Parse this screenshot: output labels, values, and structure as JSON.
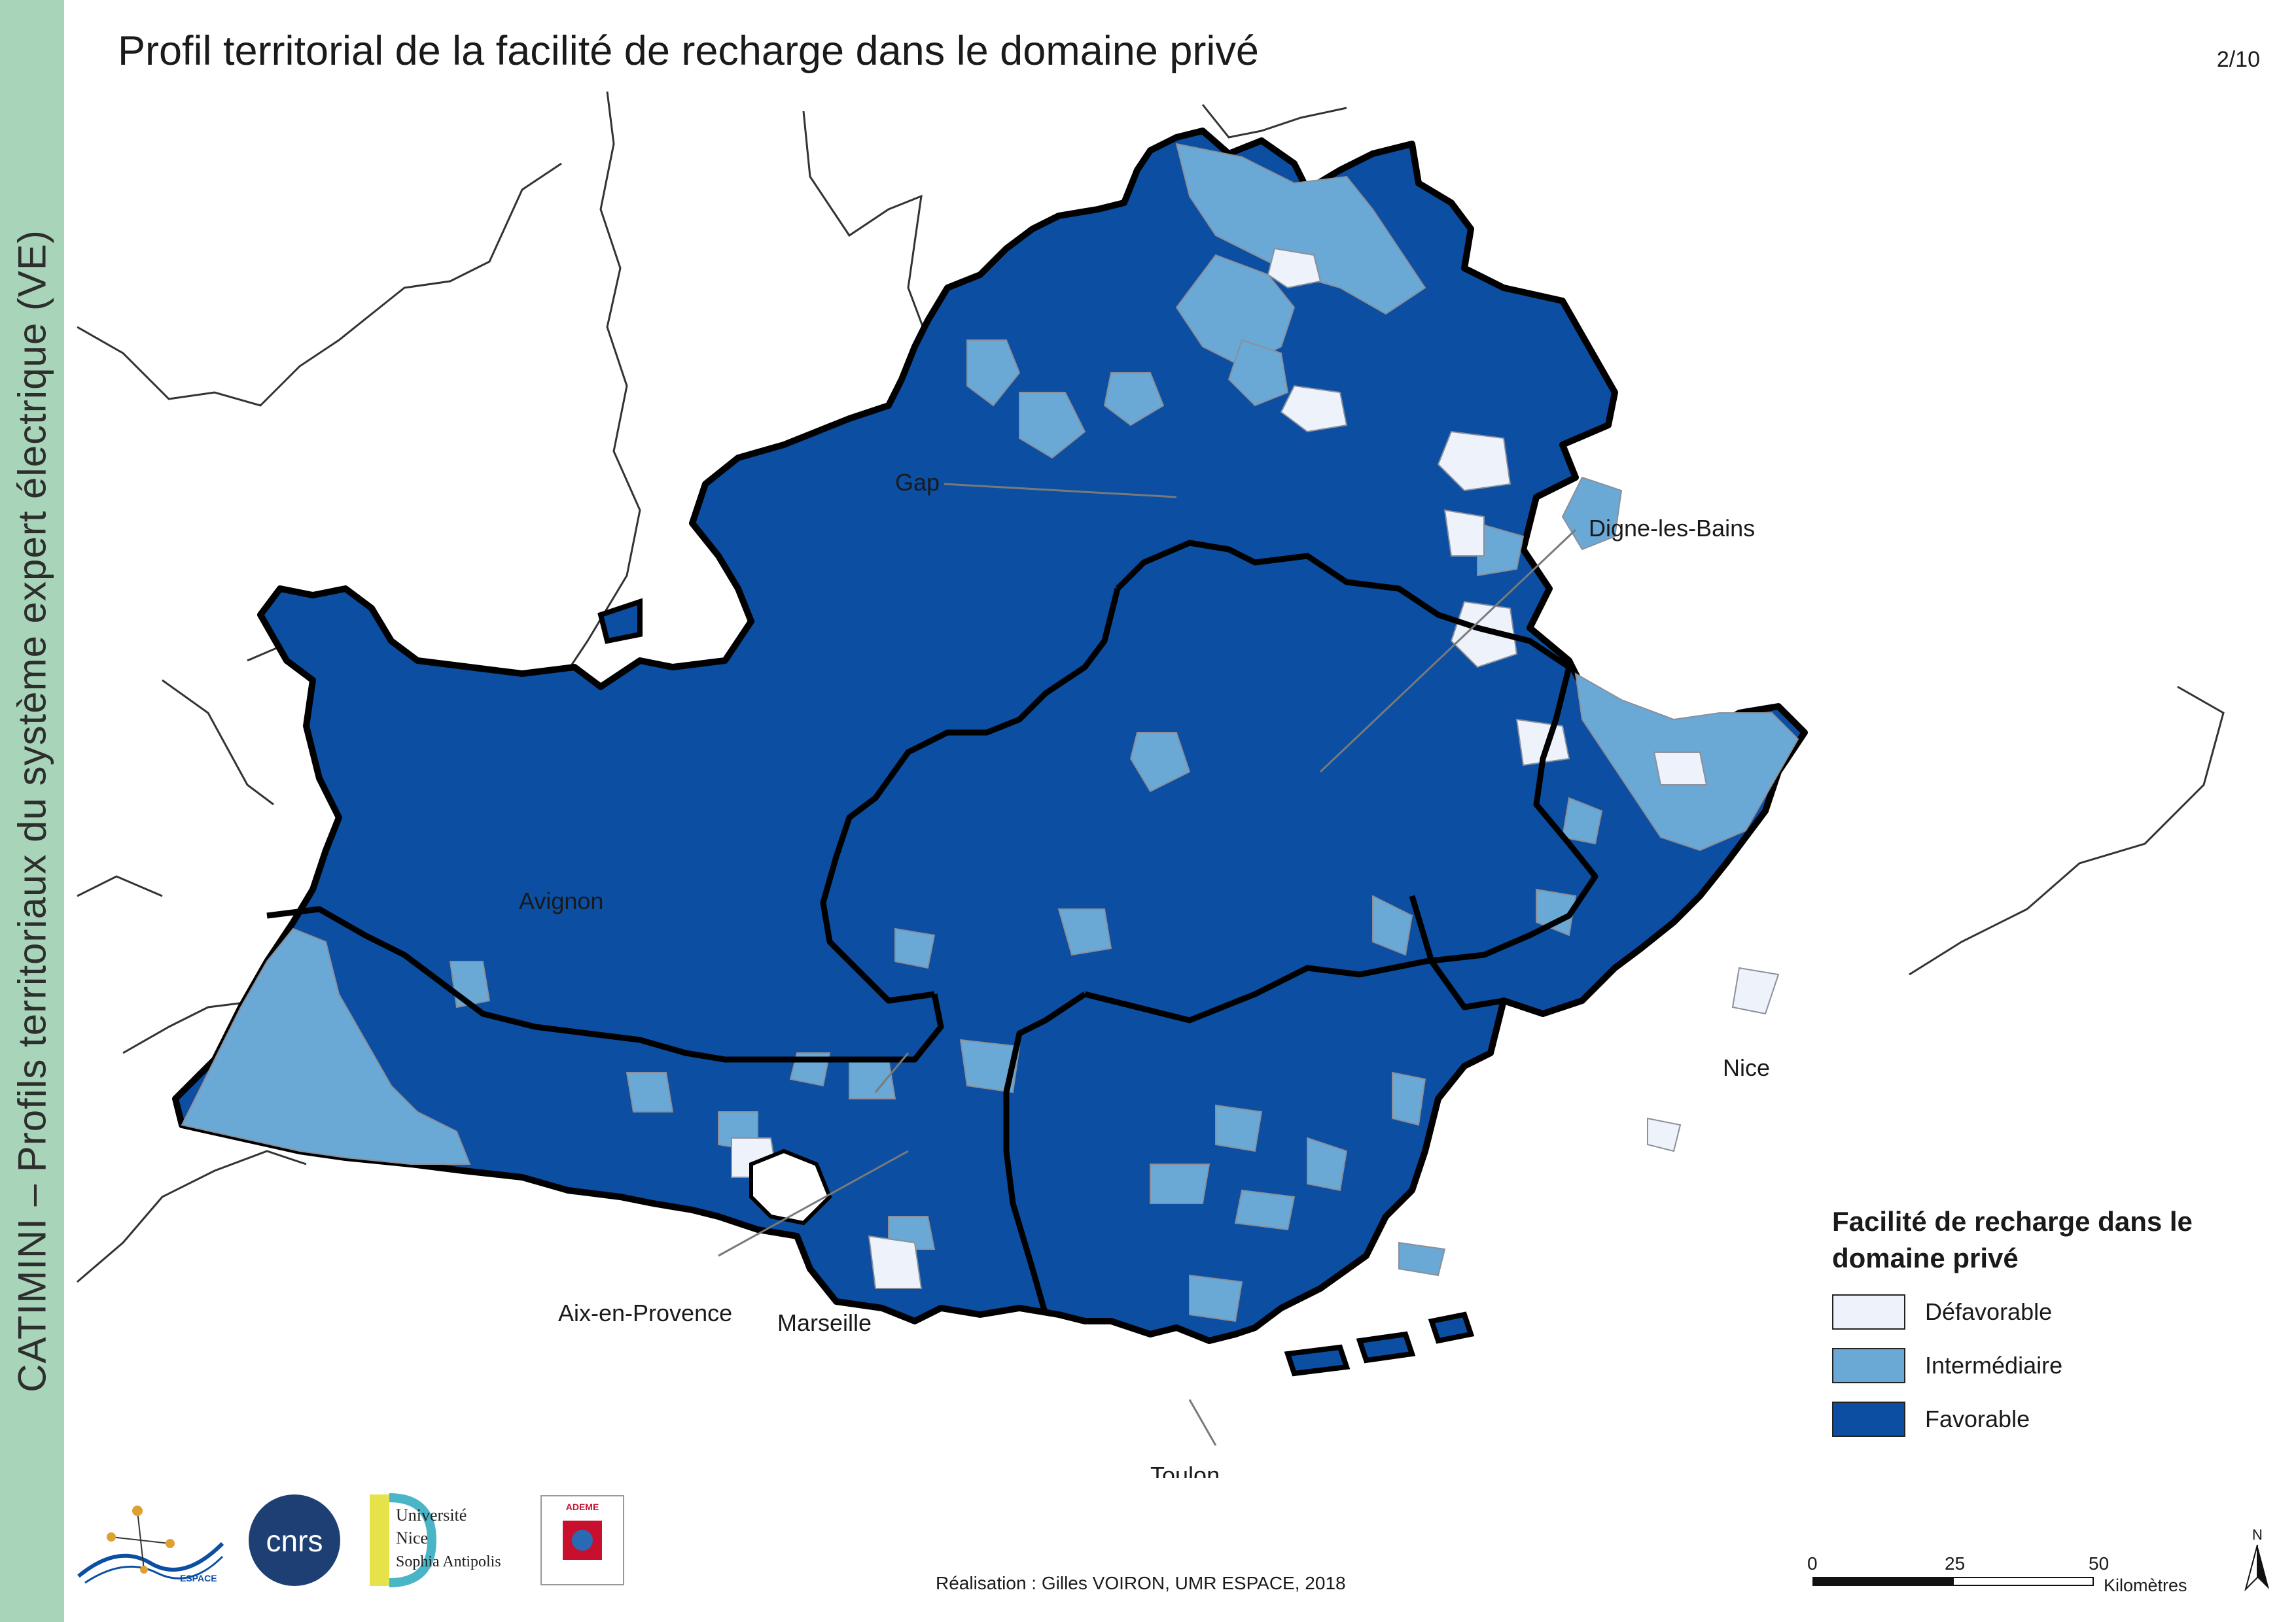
{
  "sidebar": {
    "text": "CATIMINI – Profils territoriaux du système expert électrique (VE)"
  },
  "title": "Profil territorial de la facilité de recharge dans le domaine privé",
  "page_number": "2/10",
  "cities": {
    "gap": "Gap",
    "digne": "Digne-les-Bains",
    "avignon": "Avignon",
    "nice": "Nice",
    "aix": "Aix-en-Provence",
    "marseille": "Marseille",
    "toulon": "Toulon"
  },
  "legend": {
    "title": "Facilité de recharge dans le domaine privé",
    "items": [
      {
        "label": "Défavorable",
        "color": "#eef2fb"
      },
      {
        "label": "Intermédiaire",
        "color": "#6aa9d6"
      },
      {
        "label": "Favorable",
        "color": "#0b4ea2"
      }
    ]
  },
  "logos": {
    "espace": "ESPACE",
    "cnrs": "cnrs",
    "unice_line1": "Université",
    "unice_line2": "Nice",
    "unice_line3": "Sophia Antipolis",
    "ademe": "ADEME"
  },
  "credit": "Réalisation : Gilles VOIRON, UMR ESPACE, 2018",
  "scale": {
    "ticks": [
      "0",
      "25",
      "50"
    ],
    "unit": "Kilomètres"
  },
  "north": "N",
  "colors": {
    "sidebar": "#a8d5b9",
    "border": "#000000",
    "commune_lines": "#8a8f99"
  }
}
